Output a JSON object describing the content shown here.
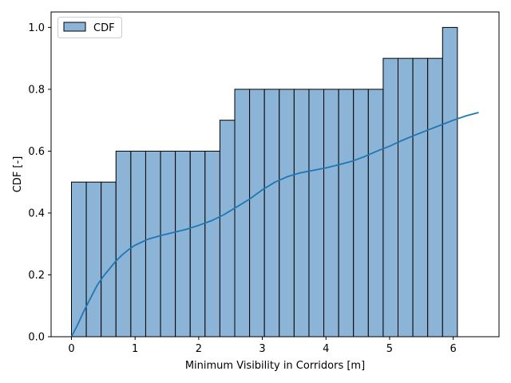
{
  "chart_data": {
    "type": "bar",
    "xlabel": "Minimum Visibility in Corridors [m]",
    "ylabel": "CDF [-]",
    "xlim": [
      -0.32,
      6.72
    ],
    "ylim": [
      0,
      1.05
    ],
    "xticks": [
      0,
      1,
      2,
      3,
      4,
      5,
      6
    ],
    "yticks": [
      0.0,
      0.2,
      0.4,
      0.6,
      0.8,
      1.0
    ],
    "grid": false,
    "legend_position": "upper-left",
    "series": [
      {
        "name": "CDF",
        "kind": "histogram",
        "bin_start": 0.0,
        "bin_width": 0.2333,
        "values": [
          0.5,
          0.5,
          0.5,
          0.6,
          0.6,
          0.6,
          0.6,
          0.6,
          0.6,
          0.6,
          0.7,
          0.8,
          0.8,
          0.8,
          0.8,
          0.8,
          0.8,
          0.8,
          0.8,
          0.8,
          0.8,
          0.9,
          0.9,
          0.9,
          0.9,
          1.0
        ],
        "fill_color": "#8cb4d6",
        "edge_color": "#000000"
      },
      {
        "kind": "kde-line",
        "color": "#1f77b4",
        "x": [
          0.0,
          0.1,
          0.2,
          0.3,
          0.4,
          0.5,
          0.6,
          0.7,
          0.8,
          0.9,
          1.0,
          1.2,
          1.4,
          1.6,
          1.8,
          2.0,
          2.2,
          2.4,
          2.6,
          2.8,
          3.0,
          3.2,
          3.4,
          3.6,
          3.8,
          4.0,
          4.2,
          4.4,
          4.6,
          4.8,
          5.0,
          5.2,
          5.4,
          5.6,
          5.8,
          6.0,
          6.2,
          6.4
        ],
        "y": [
          0.0,
          0.04,
          0.085,
          0.125,
          0.165,
          0.195,
          0.22,
          0.245,
          0.265,
          0.282,
          0.296,
          0.315,
          0.327,
          0.337,
          0.347,
          0.36,
          0.375,
          0.395,
          0.42,
          0.445,
          0.475,
          0.5,
          0.518,
          0.53,
          0.538,
          0.546,
          0.556,
          0.567,
          0.582,
          0.6,
          0.616,
          0.635,
          0.652,
          0.668,
          0.684,
          0.7,
          0.714,
          0.725
        ]
      }
    ]
  }
}
